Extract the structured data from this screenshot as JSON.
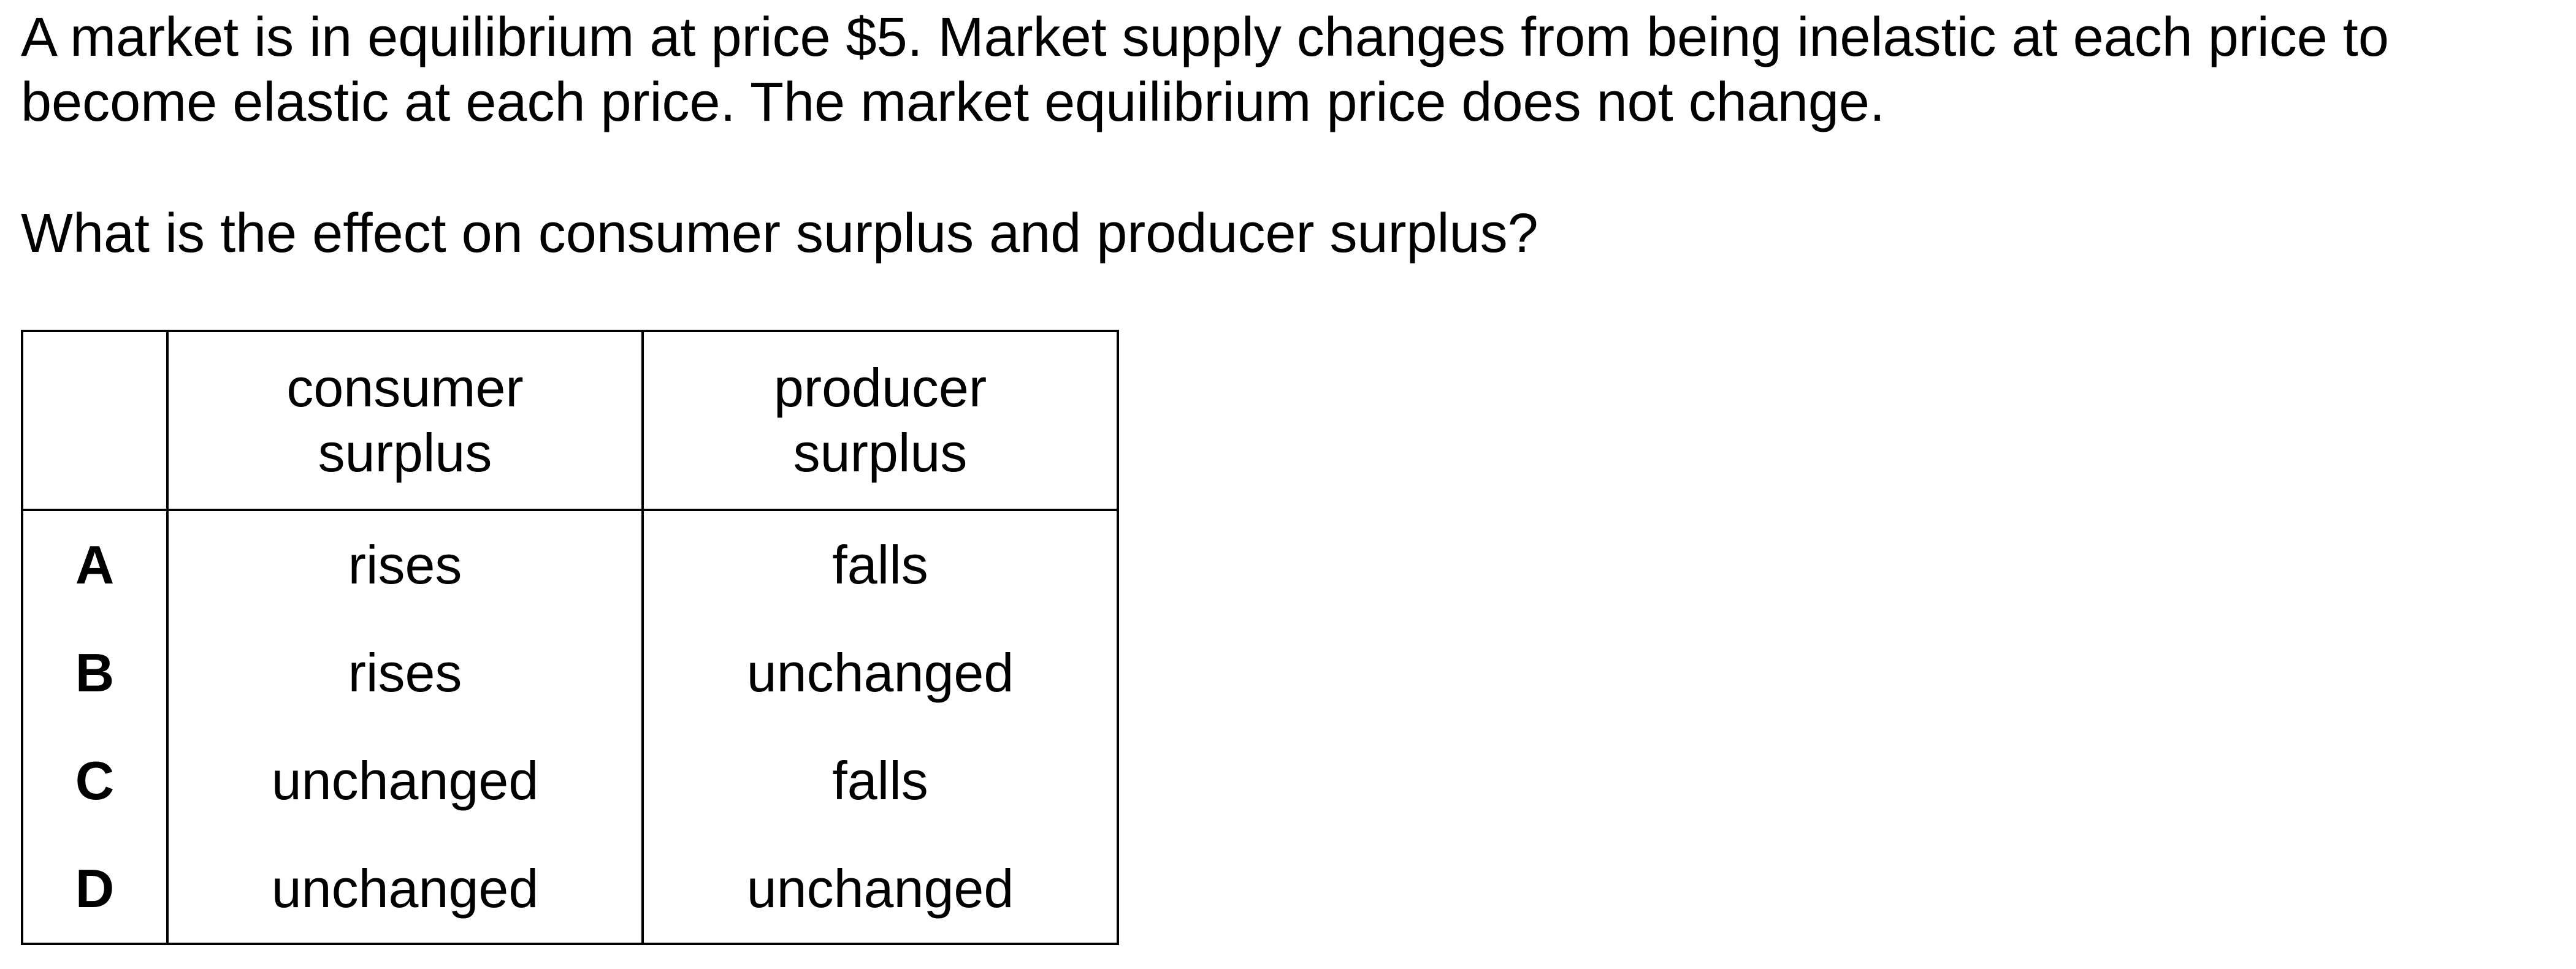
{
  "question": {
    "stem_lines": [
      "A market is in equilibrium at price $5. Market supply changes from being inelastic at each price to",
      "become elastic at each price. The market equilibrium price does not change."
    ],
    "prompt": "What is the effect on consumer surplus and producer surplus?"
  },
  "table": {
    "header": {
      "corner": "",
      "col1_lines": [
        "consumer",
        "surplus"
      ],
      "col2_lines": [
        "producer",
        "surplus"
      ]
    },
    "rows": [
      {
        "letter": "A",
        "consumer": "rises",
        "producer": "falls"
      },
      {
        "letter": "B",
        "consumer": "rises",
        "producer": "unchanged"
      },
      {
        "letter": "C",
        "consumer": "unchanged",
        "producer": "falls"
      },
      {
        "letter": "D",
        "consumer": "unchanged",
        "producer": "unchanged"
      }
    ]
  }
}
